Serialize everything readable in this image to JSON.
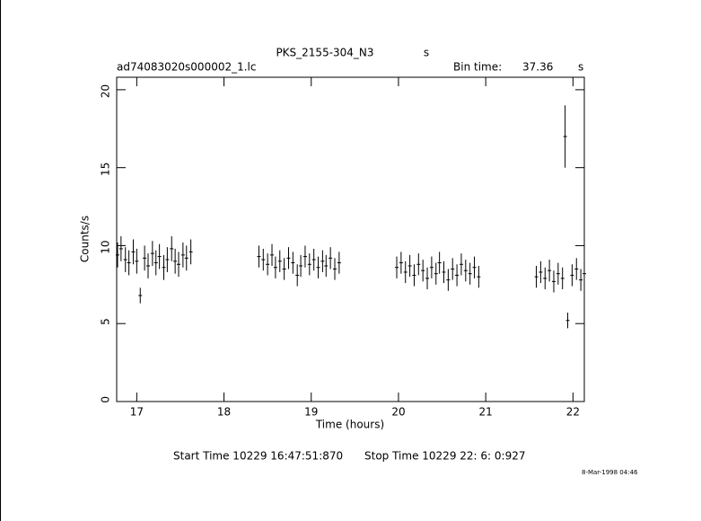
{
  "chart_data": {
    "type": "errorbar",
    "title": "PKS_2155-304_N3",
    "title_unit": "s",
    "file_name": "ad74083020s000002_1.lc",
    "bin_time_label": "Bin time:",
    "bin_time": "37.36",
    "bin_time_unit": "s",
    "x_label": "Time (hours)",
    "y_label": "Counts/s",
    "start_time": "Start Time 10229 16:47:51:870",
    "stop_time": "Stop Time 10229 22: 6: 0:927",
    "date_stamp": "8-Mar-1998 04:46",
    "color": "#000000",
    "x": [
      16.78,
      16.82,
      16.87,
      16.91,
      16.96,
      17.0,
      17.04,
      17.09,
      17.13,
      17.18,
      17.22,
      17.26,
      17.31,
      17.35,
      17.4,
      17.44,
      17.48,
      17.53,
      17.57,
      17.62,
      18.4,
      18.45,
      18.5,
      18.55,
      18.59,
      18.64,
      18.69,
      18.74,
      18.79,
      18.84,
      18.88,
      18.93,
      18.98,
      19.03,
      19.08,
      19.13,
      19.17,
      19.22,
      19.27,
      19.32,
      19.98,
      20.03,
      20.08,
      20.13,
      20.18,
      20.23,
      20.28,
      20.33,
      20.38,
      20.43,
      20.47,
      20.52,
      20.57,
      20.62,
      20.67,
      20.72,
      20.77,
      20.82,
      20.87,
      20.92,
      21.58,
      21.63,
      21.68,
      21.73,
      21.78,
      21.83,
      21.88,
      21.91,
      21.94,
      21.99,
      22.04,
      22.09,
      22.13
    ],
    "values": [
      9.4,
      9.8,
      9.1,
      8.9,
      9.6,
      9.0,
      6.8,
      9.2,
      8.7,
      9.5,
      8.9,
      9.3,
      8.6,
      9.1,
      9.8,
      9.0,
      8.8,
      9.4,
      9.2,
      9.6,
      9.3,
      9.1,
      8.8,
      9.4,
      8.6,
      9.0,
      8.5,
      9.2,
      8.9,
      8.1,
      8.7,
      9.3,
      8.8,
      9.1,
      8.6,
      9.0,
      8.7,
      9.2,
      8.5,
      8.9,
      8.6,
      8.9,
      8.3,
      8.7,
      8.1,
      8.8,
      8.4,
      7.9,
      8.6,
      8.2,
      8.9,
      8.3,
      7.8,
      8.5,
      8.1,
      8.8,
      8.4,
      8.2,
      8.6,
      8.0,
      8.0,
      8.3,
      7.9,
      8.4,
      7.7,
      8.2,
      7.9,
      17.0,
      5.2,
      8.1,
      8.5,
      7.8,
      8.2
    ],
    "errors": [
      0.8,
      0.8,
      0.8,
      0.8,
      0.8,
      0.8,
      0.5,
      0.8,
      0.8,
      0.8,
      0.8,
      0.8,
      0.8,
      0.8,
      0.8,
      0.8,
      0.8,
      0.8,
      0.8,
      0.8,
      0.7,
      0.7,
      0.7,
      0.7,
      0.7,
      0.7,
      0.7,
      0.7,
      0.7,
      0.7,
      0.7,
      0.7,
      0.7,
      0.7,
      0.7,
      0.7,
      0.7,
      0.7,
      0.7,
      0.7,
      0.7,
      0.7,
      0.7,
      0.7,
      0.7,
      0.7,
      0.7,
      0.7,
      0.7,
      0.7,
      0.7,
      0.7,
      0.7,
      0.7,
      0.7,
      0.7,
      0.7,
      0.7,
      0.7,
      0.7,
      0.7,
      0.7,
      0.7,
      0.7,
      0.7,
      0.7,
      0.7,
      2.0,
      0.5,
      0.7,
      0.7,
      0.7,
      0.7
    ],
    "xlim": [
      16.77,
      22.13
    ],
    "xticks": [
      17,
      18,
      19,
      20,
      21,
      22
    ],
    "ylim": [
      0,
      20.8
    ],
    "yticks": [
      0,
      5,
      10,
      15,
      20
    ]
  }
}
